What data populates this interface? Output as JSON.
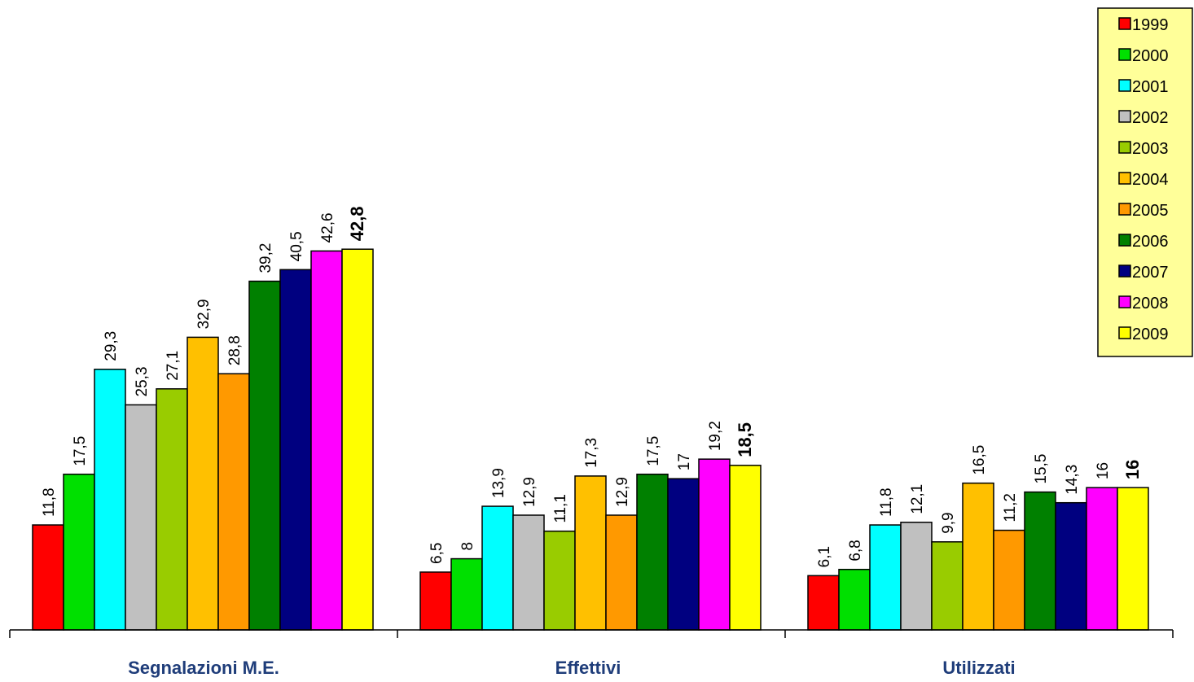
{
  "chart_data": {
    "type": "bar",
    "categories": [
      "Segnalazioni M.E.",
      "Effettivi",
      "Utilizzati"
    ],
    "series": [
      {
        "name": "1999",
        "color": "#ff0000",
        "values": [
          11.8,
          6.5,
          6.1
        ],
        "labels": [
          "11,8",
          "6,5",
          "6,1"
        ]
      },
      {
        "name": "2000",
        "color": "#00e000",
        "values": [
          17.5,
          8,
          6.8
        ],
        "labels": [
          "17,5",
          "8",
          "6,8"
        ]
      },
      {
        "name": "2001",
        "color": "#00ffff",
        "values": [
          29.3,
          13.9,
          11.8
        ],
        "labels": [
          "29,3",
          "13,9",
          "11,8"
        ]
      },
      {
        "name": "2002",
        "color": "#c0c0c0",
        "values": [
          25.3,
          12.9,
          12.1
        ],
        "labels": [
          "25,3",
          "12,9",
          "12,1"
        ]
      },
      {
        "name": "2003",
        "color": "#99cc00",
        "values": [
          27.1,
          11.1,
          9.9
        ],
        "labels": [
          "27,1",
          "11,1",
          "9,9"
        ]
      },
      {
        "name": "2004",
        "color": "#ffc000",
        "values": [
          32.9,
          17.3,
          16.5
        ],
        "labels": [
          "32,9",
          "17,3",
          "16,5"
        ]
      },
      {
        "name": "2005",
        "color": "#ff9900",
        "values": [
          28.8,
          12.9,
          11.2
        ],
        "labels": [
          "28,8",
          "12,9",
          "11,2"
        ]
      },
      {
        "name": "2006",
        "color": "#008000",
        "values": [
          39.2,
          17.5,
          15.5
        ],
        "labels": [
          "39,2",
          "17,5",
          "15,5"
        ]
      },
      {
        "name": "2007",
        "color": "#000080",
        "values": [
          40.5,
          17,
          14.3
        ],
        "labels": [
          "40,5",
          "17",
          "14,3"
        ]
      },
      {
        "name": "2008",
        "color": "#ff00ff",
        "values": [
          42.6,
          19.2,
          16
        ],
        "labels": [
          "42,6",
          "19,2",
          "16"
        ]
      },
      {
        "name": "2009",
        "color": "#ffff00",
        "values": [
          42.8,
          18.5,
          16
        ],
        "labels": [
          "42,8",
          "18,5",
          "16"
        ],
        "bold_labels": true
      }
    ],
    "ylim": [
      0,
      50
    ],
    "grid": false,
    "legend_position": "top-right",
    "legend_background": "#ffff99"
  }
}
